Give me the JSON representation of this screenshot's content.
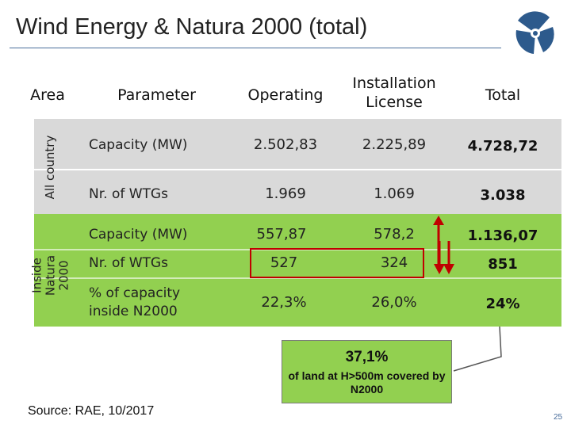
{
  "title": "Wind Energy & Natura 2000 (total)",
  "header": {
    "area": "Area",
    "parameter": "Parameter",
    "operating": "Operating",
    "installation": "Installation License",
    "total": "Total"
  },
  "groups": {
    "all_country": "All country",
    "inside_natura": "Inside Natura 2000"
  },
  "rows": [
    {
      "param": "Capacity (MW)",
      "operating": "2.502,83",
      "installation": "2.225,89",
      "total": "4.728,72"
    },
    {
      "param": "Nr. of WTGs",
      "operating": "1.969",
      "installation": "1.069",
      "total": "3.038"
    },
    {
      "param": "Capacity (MW)",
      "operating": "557,87",
      "installation": "578,2",
      "total": "1.136,07"
    },
    {
      "param": "Nr. of WTGs",
      "operating": "527",
      "installation": "324",
      "total": "851"
    },
    {
      "param": "% of capacity inside N2000",
      "operating": "22,3%",
      "installation": "26,0%",
      "total": "24%"
    }
  ],
  "callout": {
    "value": "37,1%",
    "text": "of land at H>500m covered by N2000"
  },
  "source": "Source: RAE, 10/2017",
  "page_number": "25",
  "colors": {
    "accent": "#4a6e9c",
    "gray_band": "#d9d9d9",
    "green_band": "#92d050",
    "arrow_red": "#c00000"
  }
}
